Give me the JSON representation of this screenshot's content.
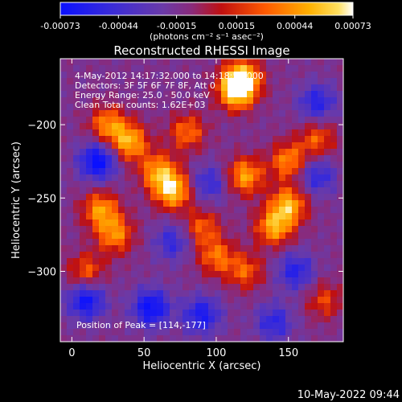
{
  "colorbar": {
    "tick_labels": [
      "-0.00073",
      "-0.00044",
      "-0.00015",
      "0.00015",
      "0.00044",
      "0.00073"
    ],
    "tick_values": [
      -0.00073,
      -0.00044,
      -0.00015,
      0.00015,
      0.00044,
      0.00073
    ],
    "range": [
      -0.00073,
      0.00073
    ],
    "unit_label": "(photons cm⁻² s⁻¹ asec⁻²)",
    "colors": [
      "#0a10ff",
      "#3b2cd6",
      "#6a3aa8",
      "#8a2a7a",
      "#c01010",
      "#ff5a00",
      "#ffb000",
      "#ffe060",
      "#ffffff"
    ]
  },
  "chart_data": {
    "type": "heatmap",
    "title": "Reconstructed RHESSI Image",
    "xlabel": "Heliocentric X (arcsec)",
    "ylabel": "Heliocentric Y (arcsec)",
    "x_ticks": [
      0,
      50,
      100,
      150
    ],
    "y_ticks": [
      -200,
      -250,
      -300
    ],
    "xlim": [
      -8,
      188
    ],
    "ylim": [
      -348,
      -155
    ],
    "annotations": [
      "4-May-2012 14:17:32.000 to 14:18:56.000",
      "Detectors: 3F 5F 6F 7F 8F, Att 0",
      "Energy Range: 25.0 - 50.0 keV",
      "Clean     Total counts: 1.62E+03"
    ],
    "peak_label": "Position of Peak = [114,-177]",
    "peak": [
      114,
      -177
    ],
    "hotspots": [
      {
        "x": 114,
        "y": -177,
        "v": 1.0
      },
      {
        "x": 118,
        "y": -168,
        "v": 0.9
      },
      {
        "x": 70,
        "y": -245,
        "v": 0.95
      },
      {
        "x": 60,
        "y": -232,
        "v": 0.75
      },
      {
        "x": 40,
        "y": -212,
        "v": 0.85
      },
      {
        "x": 25,
        "y": -200,
        "v": 0.7
      },
      {
        "x": 120,
        "y": -235,
        "v": 0.8
      },
      {
        "x": 150,
        "y": -255,
        "v": 0.85
      },
      {
        "x": 140,
        "y": -270,
        "v": 0.8
      },
      {
        "x": 100,
        "y": -290,
        "v": 0.6
      },
      {
        "x": 120,
        "y": -300,
        "v": 0.55
      },
      {
        "x": 20,
        "y": -258,
        "v": 0.75
      },
      {
        "x": 30,
        "y": -275,
        "v": 0.7
      },
      {
        "x": 10,
        "y": -300,
        "v": 0.55
      },
      {
        "x": 80,
        "y": -205,
        "v": 0.6
      },
      {
        "x": 170,
        "y": -210,
        "v": 0.55
      },
      {
        "x": 175,
        "y": -320,
        "v": 0.45
      },
      {
        "x": 150,
        "y": -225,
        "v": 0.7
      },
      {
        "x": 90,
        "y": -270,
        "v": 0.55
      }
    ],
    "coldspots": [
      {
        "x": 18,
        "y": -225,
        "v": -0.9
      },
      {
        "x": 10,
        "y": -320,
        "v": -0.8
      },
      {
        "x": 55,
        "y": -325,
        "v": -0.85
      },
      {
        "x": 90,
        "y": -330,
        "v": -0.7
      },
      {
        "x": 155,
        "y": -300,
        "v": -0.6
      },
      {
        "x": 170,
        "y": -185,
        "v": -0.6
      },
      {
        "x": 170,
        "y": -235,
        "v": -0.55
      },
      {
        "x": 95,
        "y": -240,
        "v": -0.5
      },
      {
        "x": 70,
        "y": -280,
        "v": -0.5
      },
      {
        "x": 140,
        "y": -335,
        "v": -0.55
      }
    ]
  },
  "footer": {
    "timestamp": "10-May-2022 09:44"
  }
}
